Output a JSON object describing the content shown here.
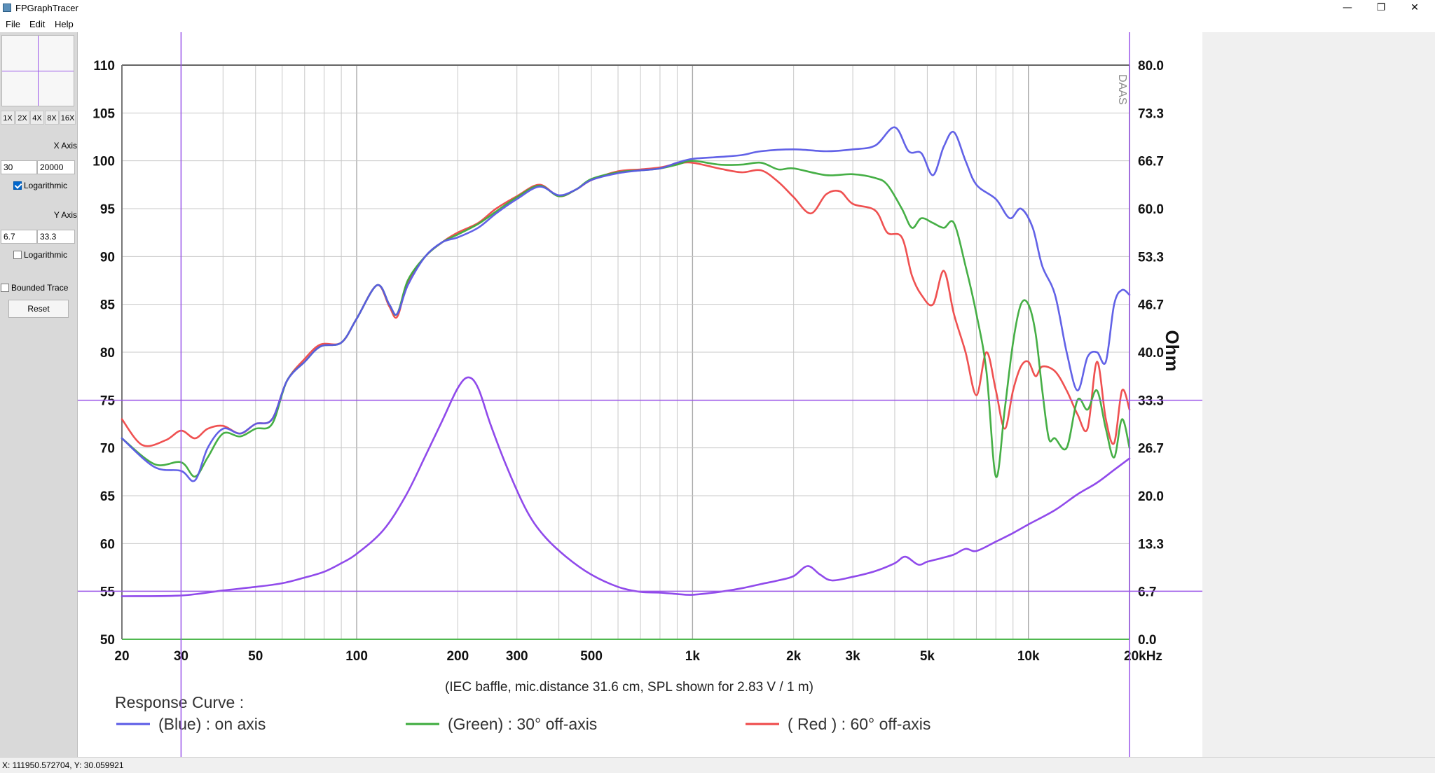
{
  "window": {
    "title": "FPGraphTracer",
    "minimize_glyph": "—",
    "restore_glyph": "❐",
    "close_glyph": "✕"
  },
  "menu": [
    "File",
    "Edit",
    "Help"
  ],
  "panel": {
    "zoom_buttons": [
      "1X",
      "2X",
      "4X",
      "8X",
      "16X"
    ],
    "x_axis": {
      "label": "X Axis",
      "min": "30",
      "max": "20000",
      "log_label": "Logarithmic",
      "log_checked": true
    },
    "y_axis": {
      "label": "Y Axis",
      "min": "6.7",
      "max": "33.3",
      "log_label": "Logarithmic",
      "log_checked": false
    },
    "bounded_trace": {
      "label": "Bounded Trace",
      "checked": false
    },
    "reset_label": "Reset"
  },
  "status": {
    "text": "X: 111950.572704, Y: 30.059921"
  },
  "colors": {
    "blue": "#5a5ae6",
    "green": "#3cab3c",
    "red": "#ee4848",
    "impedance": "#8a40ea",
    "crosshair": "#9a55e8",
    "grid": "#c8c8c8"
  },
  "chart_data": {
    "type": "line",
    "xscale": "log",
    "xlim": [
      20,
      20000
    ],
    "ylim_left": [
      50,
      110
    ],
    "ylim_right": [
      0,
      80
    ],
    "left_ticks": [
      110,
      105,
      100,
      95,
      90,
      85,
      80,
      75,
      70,
      65,
      60,
      55,
      50
    ],
    "right_ticks": [
      "80.0",
      "73.3",
      "66.7",
      "60.0",
      "53.3",
      "46.7",
      "40.0",
      "33.3",
      "26.7",
      "20.0",
      "13.3",
      "6.7",
      "0.0"
    ],
    "x_ticks": [
      {
        "v": 20,
        "t": "20"
      },
      {
        "v": 30,
        "t": "30"
      },
      {
        "v": 50,
        "t": "50"
      },
      {
        "v": 100,
        "t": "100"
      },
      {
        "v": 200,
        "t": "200"
      },
      {
        "v": 300,
        "t": "300"
      },
      {
        "v": 500,
        "t": "500"
      },
      {
        "v": 1000,
        "t": "1k"
      },
      {
        "v": 2000,
        "t": "2k"
      },
      {
        "v": 3000,
        "t": "3k"
      },
      {
        "v": 5000,
        "t": "5k"
      },
      {
        "v": 10000,
        "t": "10k"
      },
      {
        "v": 20000,
        "t": "20kHz"
      }
    ],
    "right_axis_label": "Ohm",
    "watermark": "DAAS",
    "note": "(IEC baffle, mic.distance 31.6 cm, SPL shown for 2.83 V / 1 m)",
    "legend_title": "Response Curve :",
    "legend": [
      {
        "key": "blue",
        "text": "(Blue)  : on axis"
      },
      {
        "key": "green",
        "text": "(Green) : 30° off-axis"
      },
      {
        "key": "red",
        "text": "( Red ) : 60° off-axis"
      }
    ],
    "series": [
      {
        "name": "(Blue)  : on axis",
        "key": "blue",
        "points": [
          [
            20,
            71
          ],
          [
            25,
            68
          ],
          [
            30,
            67.6
          ],
          [
            33,
            66.6
          ],
          [
            36,
            70
          ],
          [
            40,
            72
          ],
          [
            45,
            71.5
          ],
          [
            50,
            72.5
          ],
          [
            56,
            73
          ],
          [
            62,
            77
          ],
          [
            70,
            79
          ],
          [
            78,
            80.6
          ],
          [
            90,
            81
          ],
          [
            100,
            83.5
          ],
          [
            115,
            87
          ],
          [
            125,
            85
          ],
          [
            132,
            84
          ],
          [
            142,
            87
          ],
          [
            160,
            90
          ],
          [
            180,
            91.5
          ],
          [
            200,
            92
          ],
          [
            230,
            93
          ],
          [
            260,
            94.5
          ],
          [
            300,
            96
          ],
          [
            350,
            97.3
          ],
          [
            400,
            96.4
          ],
          [
            450,
            97
          ],
          [
            500,
            98
          ],
          [
            600,
            98.7
          ],
          [
            700,
            99
          ],
          [
            800,
            99.2
          ],
          [
            900,
            99.8
          ],
          [
            1000,
            100.2
          ],
          [
            1200,
            100.4
          ],
          [
            1400,
            100.6
          ],
          [
            1600,
            101
          ],
          [
            2000,
            101.2
          ],
          [
            2500,
            101
          ],
          [
            3000,
            101.2
          ],
          [
            3500,
            101.6
          ],
          [
            4000,
            103.5
          ],
          [
            4400,
            101
          ],
          [
            4800,
            100.8
          ],
          [
            5200,
            98.5
          ],
          [
            5600,
            101.5
          ],
          [
            6000,
            103
          ],
          [
            6500,
            100
          ],
          [
            7000,
            97.5
          ],
          [
            8000,
            96
          ],
          [
            8800,
            94
          ],
          [
            9500,
            95
          ],
          [
            10300,
            93
          ],
          [
            11000,
            89
          ],
          [
            12000,
            86
          ],
          [
            13000,
            80
          ],
          [
            14000,
            76
          ],
          [
            15000,
            79.5
          ],
          [
            16000,
            80
          ],
          [
            17000,
            79
          ],
          [
            18000,
            85
          ],
          [
            19000,
            86.5
          ],
          [
            20000,
            86
          ]
        ]
      },
      {
        "name": "(Green) : 30° off-axis",
        "key": "green",
        "points": [
          [
            20,
            71
          ],
          [
            25,
            68.3
          ],
          [
            30,
            68.5
          ],
          [
            33,
            67
          ],
          [
            36,
            69
          ],
          [
            40,
            71.5
          ],
          [
            45,
            71.2
          ],
          [
            50,
            72
          ],
          [
            56,
            72.5
          ],
          [
            62,
            77
          ],
          [
            70,
            79
          ],
          [
            78,
            80.6
          ],
          [
            90,
            81
          ],
          [
            100,
            83.5
          ],
          [
            115,
            87
          ],
          [
            125,
            85
          ],
          [
            132,
            84
          ],
          [
            142,
            87.5
          ],
          [
            160,
            90
          ],
          [
            180,
            91.5
          ],
          [
            200,
            92.3
          ],
          [
            230,
            93.4
          ],
          [
            260,
            94.7
          ],
          [
            300,
            96.2
          ],
          [
            350,
            97.4
          ],
          [
            400,
            96.3
          ],
          [
            450,
            97
          ],
          [
            500,
            98.1
          ],
          [
            600,
            98.8
          ],
          [
            700,
            99
          ],
          [
            800,
            99.2
          ],
          [
            900,
            99.6
          ],
          [
            1000,
            100
          ],
          [
            1200,
            99.6
          ],
          [
            1400,
            99.6
          ],
          [
            1600,
            99.8
          ],
          [
            1800,
            99.1
          ],
          [
            2000,
            99.2
          ],
          [
            2500,
            98.5
          ],
          [
            3000,
            98.6
          ],
          [
            3500,
            98.2
          ],
          [
            3800,
            97.5
          ],
          [
            4200,
            95
          ],
          [
            4500,
            93
          ],
          [
            4800,
            94
          ],
          [
            5200,
            93.5
          ],
          [
            5600,
            93
          ],
          [
            6000,
            93.5
          ],
          [
            6500,
            89
          ],
          [
            7000,
            84
          ],
          [
            7500,
            78
          ],
          [
            8000,
            67
          ],
          [
            8500,
            74
          ],
          [
            9000,
            81
          ],
          [
            9500,
            85
          ],
          [
            10000,
            85
          ],
          [
            10500,
            82
          ],
          [
            11000,
            76
          ],
          [
            11500,
            71
          ],
          [
            12000,
            71
          ],
          [
            13000,
            70
          ],
          [
            14000,
            75
          ],
          [
            15000,
            74
          ],
          [
            16000,
            76
          ],
          [
            17000,
            72
          ],
          [
            18000,
            69
          ],
          [
            19000,
            73
          ],
          [
            20000,
            70
          ]
        ]
      },
      {
        "name": "( Red ) : 60° off-axis",
        "key": "red",
        "points": [
          [
            20,
            73
          ],
          [
            23,
            70.3
          ],
          [
            27,
            70.8
          ],
          [
            30,
            71.8
          ],
          [
            33,
            71
          ],
          [
            36,
            72
          ],
          [
            40,
            72.3
          ],
          [
            45,
            71.5
          ],
          [
            50,
            72.5
          ],
          [
            56,
            73
          ],
          [
            62,
            77
          ],
          [
            70,
            79.3
          ],
          [
            78,
            80.8
          ],
          [
            90,
            81
          ],
          [
            100,
            83.5
          ],
          [
            115,
            87
          ],
          [
            125,
            84.8
          ],
          [
            132,
            83.7
          ],
          [
            142,
            87.3
          ],
          [
            160,
            90
          ],
          [
            180,
            91.5
          ],
          [
            200,
            92.5
          ],
          [
            230,
            93.5
          ],
          [
            260,
            95
          ],
          [
            300,
            96.3
          ],
          [
            350,
            97.5
          ],
          [
            400,
            96.3
          ],
          [
            450,
            97
          ],
          [
            500,
            98
          ],
          [
            600,
            98.9
          ],
          [
            700,
            99.1
          ],
          [
            800,
            99.3
          ],
          [
            900,
            99.7
          ],
          [
            1000,
            99.8
          ],
          [
            1200,
            99.2
          ],
          [
            1400,
            98.8
          ],
          [
            1600,
            99
          ],
          [
            1800,
            97.8
          ],
          [
            2000,
            96.2
          ],
          [
            2250,
            94.5
          ],
          [
            2500,
            96.5
          ],
          [
            2750,
            96.8
          ],
          [
            3000,
            95.5
          ],
          [
            3500,
            94.8
          ],
          [
            3800,
            92.5
          ],
          [
            4200,
            92
          ],
          [
            4500,
            88
          ],
          [
            4800,
            86
          ],
          [
            5200,
            85
          ],
          [
            5600,
            88.5
          ],
          [
            6000,
            84
          ],
          [
            6500,
            80
          ],
          [
            7000,
            75.5
          ],
          [
            7500,
            80
          ],
          [
            8000,
            76
          ],
          [
            8500,
            72
          ],
          [
            9000,
            76
          ],
          [
            9500,
            78.5
          ],
          [
            10000,
            79
          ],
          [
            10500,
            77.5
          ],
          [
            11000,
            78.5
          ],
          [
            12000,
            78
          ],
          [
            13000,
            76
          ],
          [
            14000,
            73.5
          ],
          [
            15000,
            72
          ],
          [
            16000,
            79
          ],
          [
            17000,
            73
          ],
          [
            18000,
            70.5
          ],
          [
            19000,
            76
          ],
          [
            20000,
            74
          ]
        ]
      },
      {
        "name": "Impedance",
        "key": "impedance",
        "axis": "right",
        "points": [
          [
            20,
            6.0
          ],
          [
            30,
            6.1
          ],
          [
            40,
            6.8
          ],
          [
            50,
            7.3
          ],
          [
            60,
            7.8
          ],
          [
            70,
            8.6
          ],
          [
            80,
            9.4
          ],
          [
            90,
            10.6
          ],
          [
            100,
            11.9
          ],
          [
            120,
            15.2
          ],
          [
            140,
            20.0
          ],
          [
            160,
            25.5
          ],
          [
            180,
            30.5
          ],
          [
            200,
            35
          ],
          [
            215,
            36.5
          ],
          [
            230,
            35
          ],
          [
            250,
            30
          ],
          [
            280,
            24
          ],
          [
            320,
            18
          ],
          [
            360,
            14.5
          ],
          [
            420,
            11.5
          ],
          [
            500,
            9
          ],
          [
            600,
            7.3
          ],
          [
            700,
            6.6
          ],
          [
            800,
            6.5
          ],
          [
            900,
            6.3
          ],
          [
            1000,
            6.2
          ],
          [
            1200,
            6.6
          ],
          [
            1400,
            7.1
          ],
          [
            1600,
            7.7
          ],
          [
            1800,
            8.2
          ],
          [
            2000,
            8.8
          ],
          [
            2200,
            10.2
          ],
          [
            2400,
            9
          ],
          [
            2600,
            8.2
          ],
          [
            3000,
            8.7
          ],
          [
            3500,
            9.5
          ],
          [
            4000,
            10.6
          ],
          [
            4300,
            11.5
          ],
          [
            4700,
            10.4
          ],
          [
            5000,
            10.8
          ],
          [
            5500,
            11.3
          ],
          [
            6000,
            11.8
          ],
          [
            6500,
            12.6
          ],
          [
            7000,
            12.3
          ],
          [
            8000,
            13.6
          ],
          [
            9000,
            14.8
          ],
          [
            10000,
            16
          ],
          [
            12000,
            18
          ],
          [
            14000,
            20.2
          ],
          [
            16000,
            21.8
          ],
          [
            18000,
            23.6
          ],
          [
            20000,
            25.2
          ]
        ]
      }
    ]
  }
}
